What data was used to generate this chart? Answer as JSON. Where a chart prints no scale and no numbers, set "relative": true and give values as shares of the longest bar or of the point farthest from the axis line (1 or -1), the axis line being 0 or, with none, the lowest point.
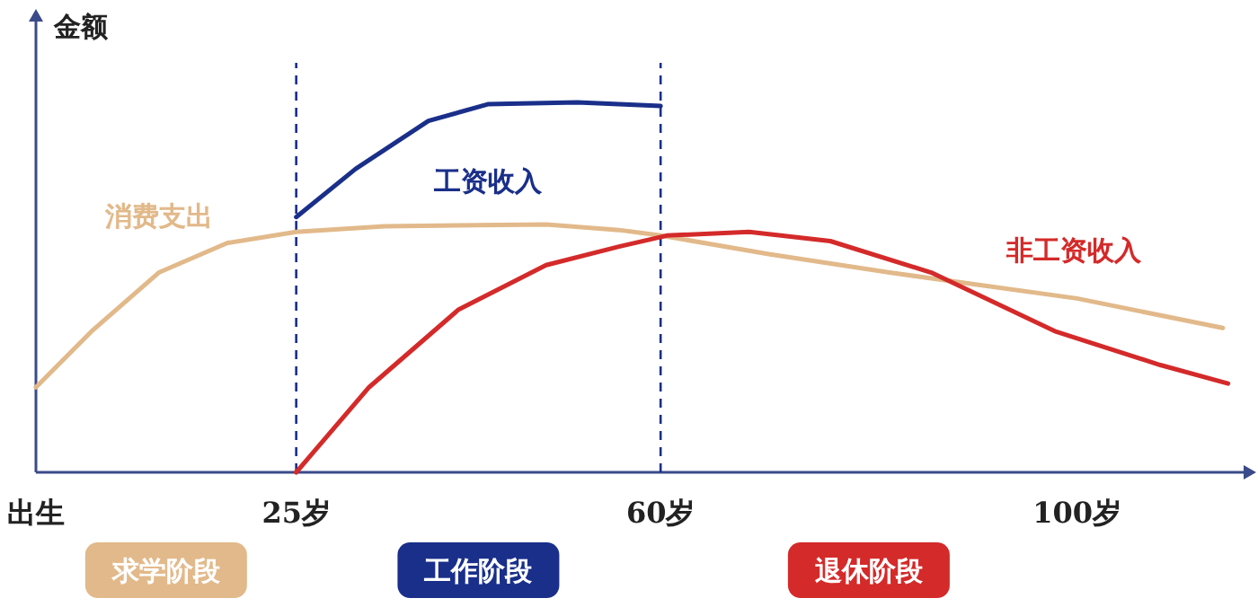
{
  "chart_data": {
    "type": "line",
    "relative": true,
    "ylabel": "金额",
    "line_style": "solid",
    "xlim": [
      0,
      116
    ],
    "xticks": [
      {
        "value": 0,
        "label": "出生"
      },
      {
        "value": 25,
        "label": "25岁"
      },
      {
        "value": 60,
        "label": "60岁"
      },
      {
        "value": 100,
        "label": "100岁"
      }
    ],
    "series": [
      {
        "name": "消费支出",
        "color": "#e2b98a",
        "x": [
          0,
          5.3,
          11.8,
          18.4,
          25,
          33.5,
          49,
          56,
          60,
          70.4,
          82,
          100,
          114
        ],
        "values": [
          0.23,
          0.38,
          0.54,
          0.62,
          0.65,
          0.665,
          0.67,
          0.655,
          0.64,
          0.59,
          0.54,
          0.47,
          0.39
        ]
      },
      {
        "name": "工资收入",
        "color": "#1a2f8a",
        "x": [
          25,
          30.7,
          37.7,
          43.4,
          52,
          60
        ],
        "values": [
          0.69,
          0.82,
          0.95,
          0.995,
          1,
          0.99
        ]
      },
      {
        "name": "非工资收入",
        "color": "#d42a2a",
        "x": [
          25,
          32,
          40.6,
          49,
          56,
          60.6,
          68.5,
          76.3,
          86,
          98,
          108,
          114.5
        ],
        "values": [
          0,
          0.23,
          0.44,
          0.56,
          0.61,
          0.64,
          0.65,
          0.625,
          0.54,
          0.38,
          0.29,
          0.24
        ]
      }
    ],
    "ref_lines": [
      {
        "axis": "x",
        "value": 25,
        "color": "#1a2f8a",
        "line_style": "dashed"
      },
      {
        "axis": "x",
        "value": 60,
        "color": "#1a2f8a",
        "line_style": "dashed"
      }
    ],
    "annotations": [
      "求学阶段",
      "工作阶段",
      "退休阶段"
    ]
  }
}
